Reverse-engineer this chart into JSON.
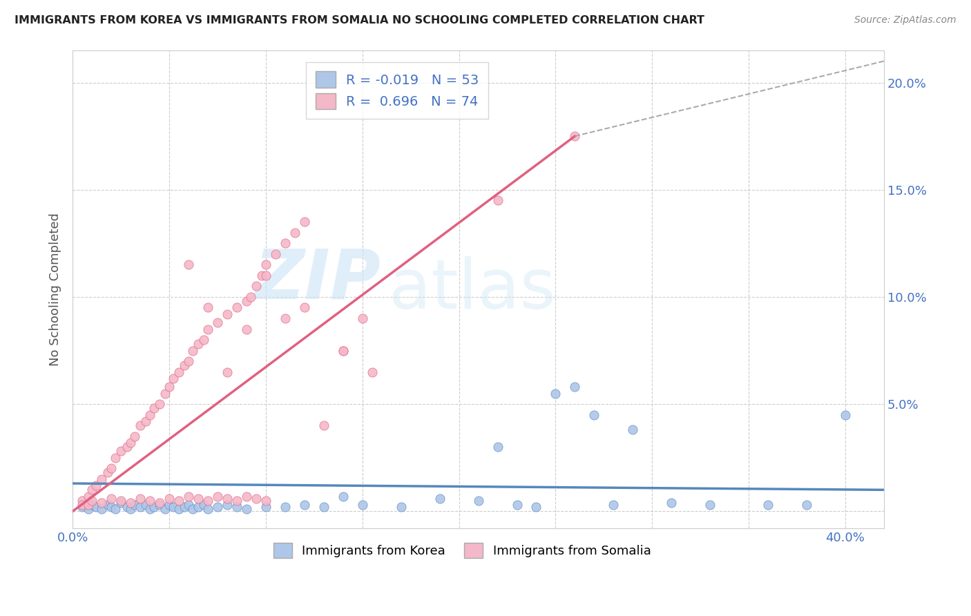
{
  "title": "IMMIGRANTS FROM KOREA VS IMMIGRANTS FROM SOMALIA NO SCHOOLING COMPLETED CORRELATION CHART",
  "source": "Source: ZipAtlas.com",
  "ylabel": "No Schooling Completed",
  "xlim": [
    0.0,
    0.42
  ],
  "ylim": [
    -0.008,
    0.215
  ],
  "korea_R": -0.019,
  "korea_N": 53,
  "somalia_R": 0.696,
  "somalia_N": 74,
  "korea_color": "#aec6e8",
  "somalia_color": "#f4b8c8",
  "korea_line_color": "#5588bb",
  "somalia_line_color": "#e06080",
  "korea_trendline": [
    0.0,
    0.013,
    0.42,
    0.01
  ],
  "somalia_trendline_solid": [
    0.0,
    0.0,
    0.26,
    0.175
  ],
  "somalia_trendline_dash": [
    0.26,
    0.175,
    0.42,
    0.21
  ],
  "watermark_zip": "ZIP",
  "watermark_atlas": "atlas",
  "legend_korea_label": "Immigrants from Korea",
  "legend_somalia_label": "Immigrants from Somalia",
  "background_color": "#ffffff",
  "grid_color": "#cccccc",
  "title_color": "#222222",
  "axis_label_color": "#4472c4",
  "korea_x": [
    0.005,
    0.008,
    0.01,
    0.012,
    0.015,
    0.018,
    0.02,
    0.022,
    0.025,
    0.028,
    0.03,
    0.032,
    0.035,
    0.038,
    0.04,
    0.042,
    0.045,
    0.048,
    0.05,
    0.052,
    0.055,
    0.058,
    0.06,
    0.062,
    0.065,
    0.068,
    0.07,
    0.075,
    0.08,
    0.085,
    0.09,
    0.1,
    0.11,
    0.12,
    0.13,
    0.14,
    0.15,
    0.17,
    0.19,
    0.21,
    0.23,
    0.25,
    0.27,
    0.29,
    0.31,
    0.33,
    0.36,
    0.38,
    0.4,
    0.22,
    0.24,
    0.26,
    0.28
  ],
  "korea_y": [
    0.002,
    0.001,
    0.003,
    0.002,
    0.001,
    0.003,
    0.002,
    0.001,
    0.004,
    0.002,
    0.001,
    0.003,
    0.002,
    0.003,
    0.001,
    0.002,
    0.003,
    0.001,
    0.003,
    0.002,
    0.001,
    0.002,
    0.003,
    0.001,
    0.002,
    0.003,
    0.001,
    0.002,
    0.003,
    0.002,
    0.001,
    0.002,
    0.002,
    0.003,
    0.002,
    0.007,
    0.003,
    0.002,
    0.006,
    0.005,
    0.003,
    0.055,
    0.045,
    0.038,
    0.004,
    0.003,
    0.003,
    0.003,
    0.045,
    0.03,
    0.002,
    0.058,
    0.003
  ],
  "somalia_x": [
    0.005,
    0.008,
    0.01,
    0.012,
    0.015,
    0.018,
    0.02,
    0.022,
    0.025,
    0.028,
    0.03,
    0.032,
    0.035,
    0.038,
    0.04,
    0.042,
    0.045,
    0.048,
    0.05,
    0.052,
    0.055,
    0.058,
    0.06,
    0.062,
    0.065,
    0.068,
    0.07,
    0.075,
    0.08,
    0.085,
    0.09,
    0.092,
    0.095,
    0.098,
    0.1,
    0.105,
    0.11,
    0.115,
    0.12,
    0.13,
    0.14,
    0.15,
    0.005,
    0.008,
    0.01,
    0.015,
    0.02,
    0.025,
    0.03,
    0.035,
    0.04,
    0.045,
    0.05,
    0.055,
    0.06,
    0.065,
    0.07,
    0.075,
    0.08,
    0.085,
    0.09,
    0.095,
    0.1,
    0.06,
    0.07,
    0.08,
    0.09,
    0.1,
    0.11,
    0.12,
    0.26,
    0.14,
    0.155,
    0.22
  ],
  "somalia_y": [
    0.005,
    0.007,
    0.01,
    0.012,
    0.015,
    0.018,
    0.02,
    0.025,
    0.028,
    0.03,
    0.032,
    0.035,
    0.04,
    0.042,
    0.045,
    0.048,
    0.05,
    0.055,
    0.058,
    0.062,
    0.065,
    0.068,
    0.07,
    0.075,
    0.078,
    0.08,
    0.085,
    0.088,
    0.092,
    0.095,
    0.098,
    0.1,
    0.105,
    0.11,
    0.115,
    0.12,
    0.125,
    0.13,
    0.135,
    0.04,
    0.075,
    0.09,
    0.003,
    0.003,
    0.005,
    0.004,
    0.006,
    0.005,
    0.004,
    0.006,
    0.005,
    0.004,
    0.006,
    0.005,
    0.007,
    0.006,
    0.005,
    0.007,
    0.006,
    0.005,
    0.007,
    0.006,
    0.005,
    0.115,
    0.095,
    0.065,
    0.085,
    0.11,
    0.09,
    0.095,
    0.175,
    0.075,
    0.065,
    0.145
  ]
}
